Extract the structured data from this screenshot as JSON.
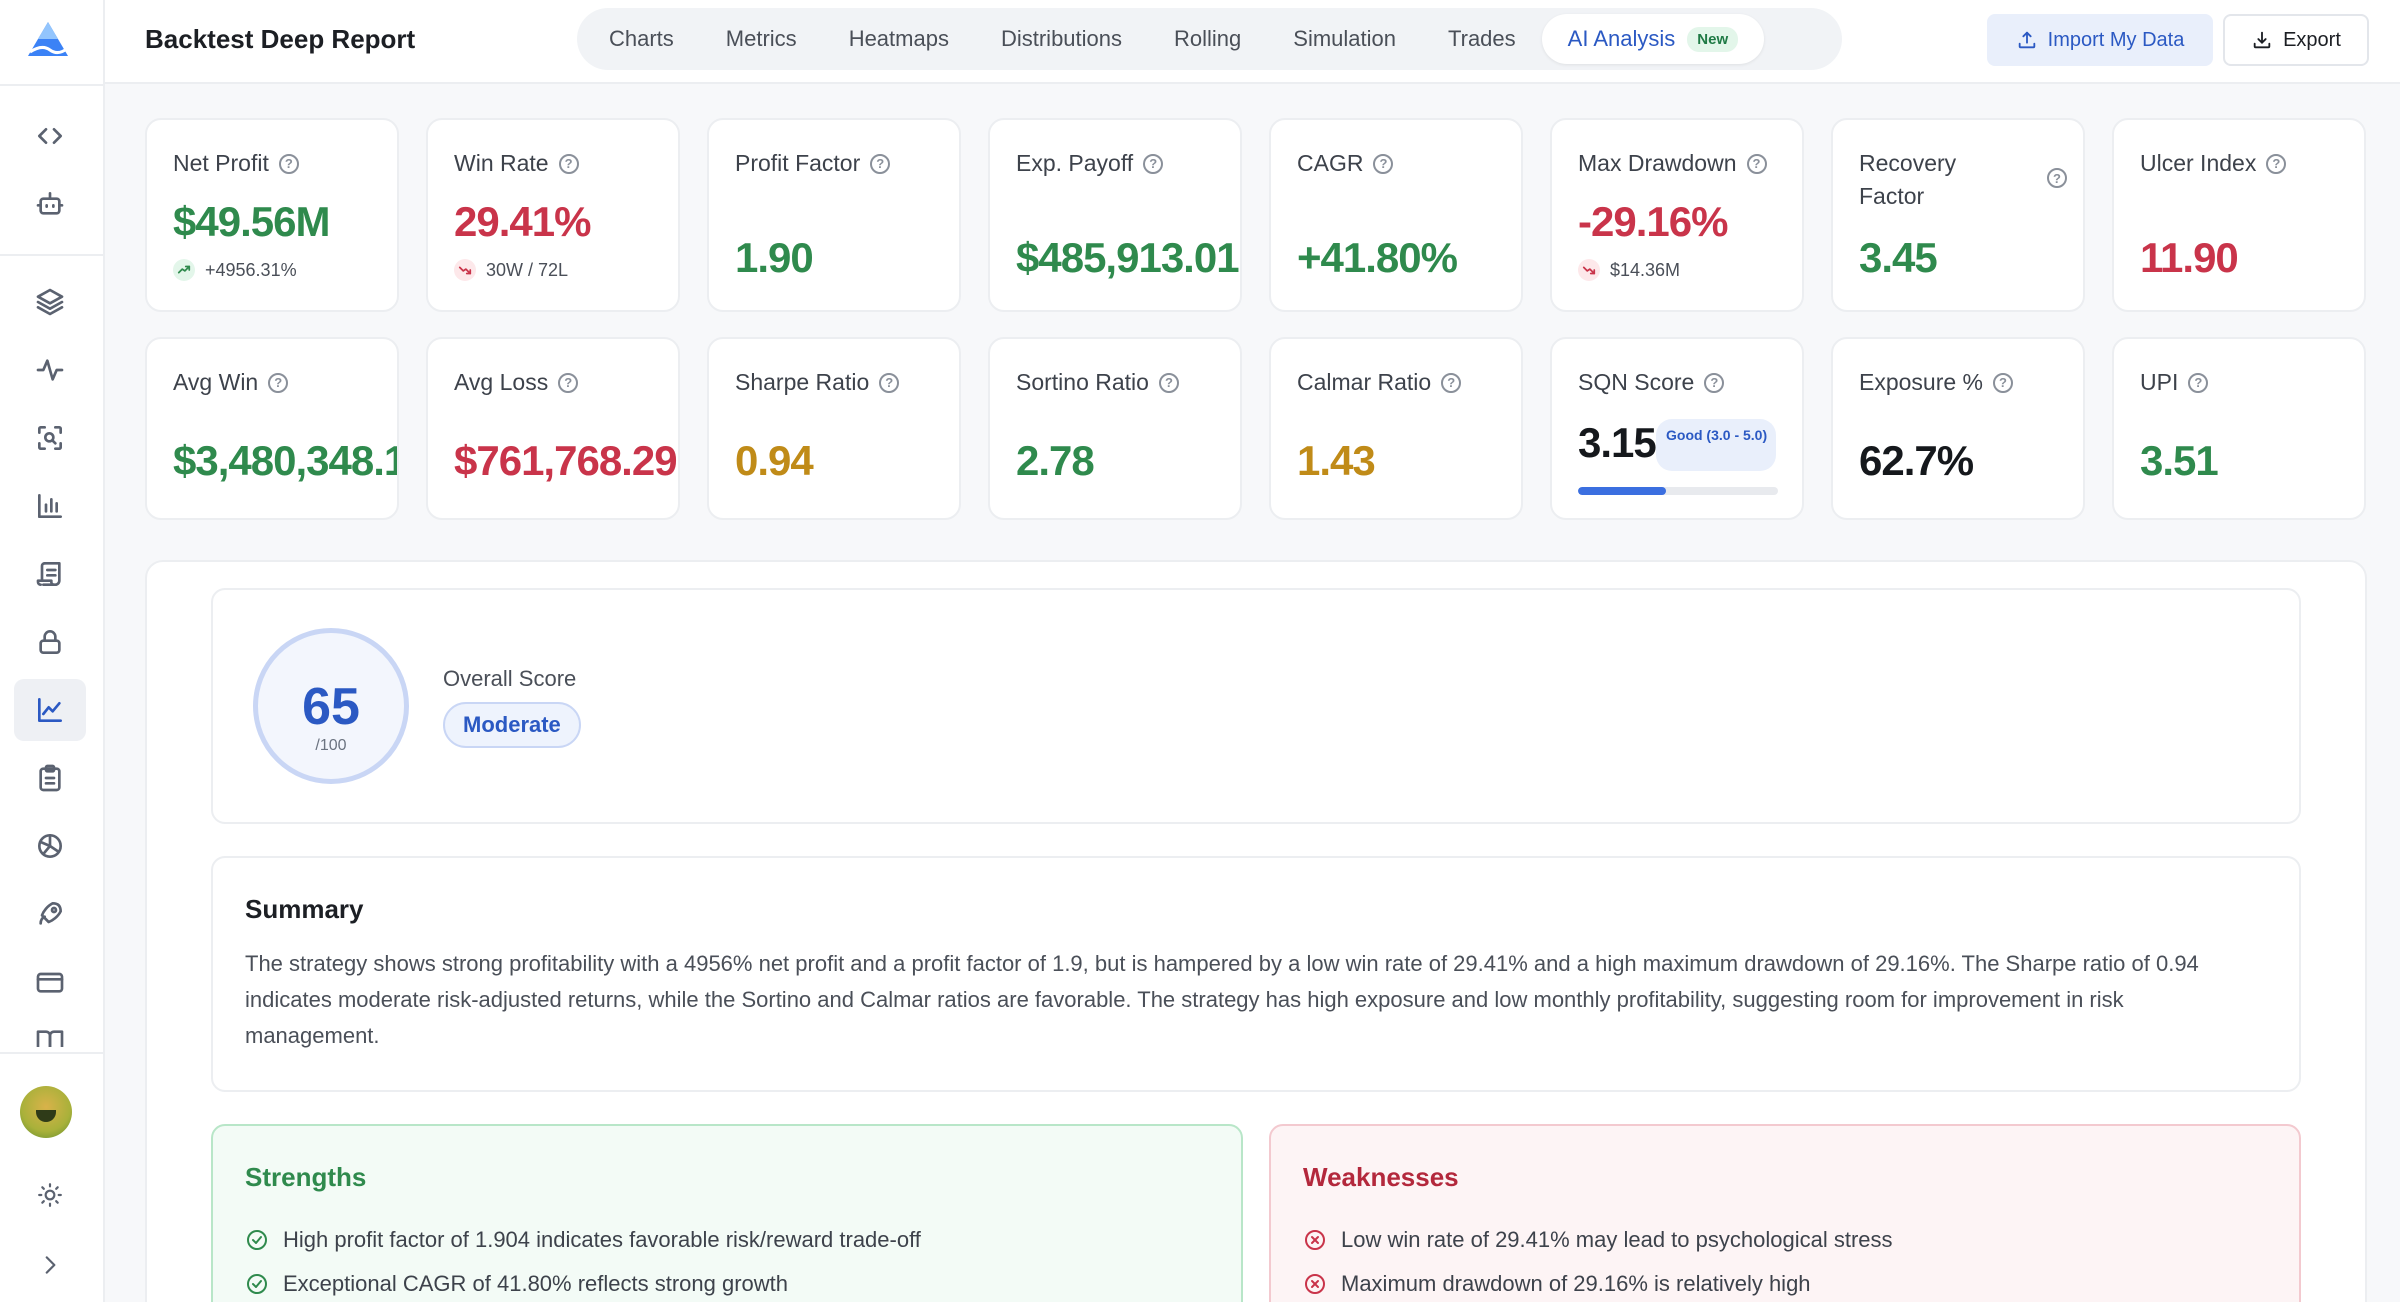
{
  "app": {
    "title": "Backtest Deep Report"
  },
  "tabs": [
    {
      "label": "Charts"
    },
    {
      "label": "Metrics"
    },
    {
      "label": "Heatmaps"
    },
    {
      "label": "Distributions"
    },
    {
      "label": "Rolling"
    },
    {
      "label": "Simulation"
    },
    {
      "label": "Trades"
    },
    {
      "label": "AI Analysis",
      "badge": "New",
      "active": true
    }
  ],
  "actions": {
    "import_label": "Import My Data",
    "export_label": "Export"
  },
  "sidebar": {
    "icons": [
      "code-icon",
      "robot-icon",
      "layers-icon",
      "activity-icon",
      "scan-search-icon",
      "bar-chart-icon",
      "scroll-icon",
      "lock-icon",
      "line-chart-icon",
      "clipboard-icon",
      "openai-icon",
      "rocket-icon",
      "credit-card-icon",
      "book-open-icon",
      "sun-icon",
      "chevron-right-icon"
    ],
    "active": "line-chart-icon"
  },
  "metrics_row1": [
    {
      "label": "Net Profit",
      "value": "$49.56M",
      "color": "green",
      "sub": "+4956.31%",
      "trend": "up"
    },
    {
      "label": "Win Rate",
      "value": "29.41%",
      "color": "red",
      "sub": "30W / 72L",
      "trend": "down"
    },
    {
      "label": "Profit Factor",
      "value": "1.90",
      "color": "green"
    },
    {
      "label": "Exp. Payoff",
      "value": "$485,913.01",
      "color": "green"
    },
    {
      "label": "CAGR",
      "value": "+41.80%",
      "color": "green"
    },
    {
      "label": "Max Drawdown",
      "value": "-29.16%",
      "color": "red",
      "sub": "$14.36M",
      "trend": "down"
    },
    {
      "label": "Recovery Factor",
      "value": "3.45",
      "color": "green"
    },
    {
      "label": "Ulcer Index",
      "value": "11.90",
      "color": "red"
    }
  ],
  "metrics_row2": [
    {
      "label": "Avg Win",
      "value": "$3,480,348.1",
      "color": "green"
    },
    {
      "label": "Avg Loss",
      "value": "$761,768.29",
      "color": "red"
    },
    {
      "label": "Sharpe Ratio",
      "value": "0.94",
      "color": "amber"
    },
    {
      "label": "Sortino Ratio",
      "value": "2.78",
      "color": "green"
    },
    {
      "label": "Calmar Ratio",
      "value": "1.43",
      "color": "amber"
    },
    {
      "label": "SQN Score",
      "value": "3.15",
      "color": "dark",
      "badge": "Good (3.0 - 5.0)",
      "progress": 0.44
    },
    {
      "label": "Exposure %",
      "value": "62.7%",
      "color": "dark"
    },
    {
      "label": "UPI",
      "value": "3.51",
      "color": "green"
    }
  ],
  "score": {
    "value": "65",
    "denominator": "/100",
    "label": "Overall Score",
    "grade": "Moderate"
  },
  "summary": {
    "title": "Summary",
    "text": "The strategy shows strong profitability with a 4956% net profit and a profit factor of 1.9, but is hampered by a low win rate of 29.41% and a high maximum drawdown of 29.16%. The Sharpe ratio of 0.94 indicates moderate risk-adjusted returns, while the Sortino and Calmar ratios are favorable. The strategy has high exposure and low monthly profitability, suggesting room for improvement in risk management."
  },
  "strengths": {
    "title": "Strengths",
    "items": [
      "High profit factor of 1.904 indicates favorable risk/reward trade-off",
      "Exceptional CAGR of 41.80% reflects strong growth"
    ]
  },
  "weaknesses": {
    "title": "Weaknesses",
    "items": [
      "Low win rate of 29.41% may lead to psychological stress",
      "Maximum drawdown of 29.16% is relatively high"
    ]
  },
  "colors": {
    "accent": "#2b59c3",
    "positive": "#2f8a4d",
    "negative": "#c9344a",
    "warning": "#c08b18"
  }
}
